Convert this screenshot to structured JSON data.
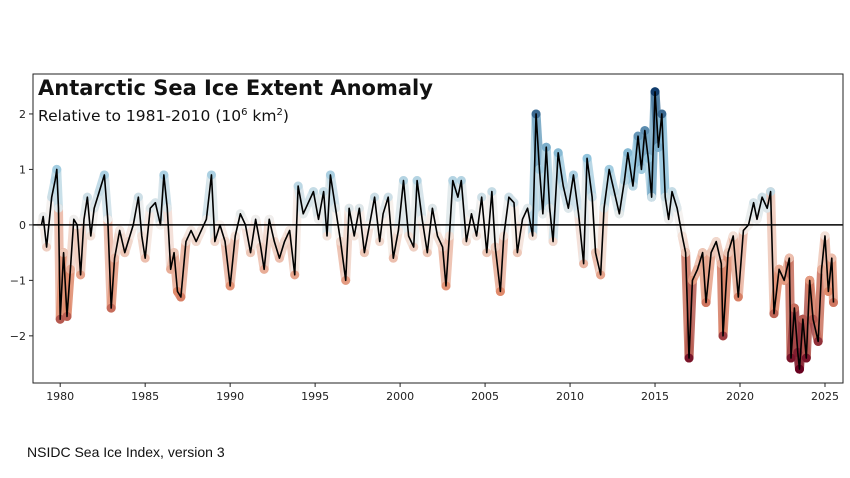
{
  "chart_data": {
    "type": "line",
    "title": "Antarctic Sea Ice Extent Anomaly",
    "subtitle_main": "Relative to 1981-2010 (10",
    "subtitle_exp1": "6",
    "subtitle_unit": " km",
    "subtitle_exp2": "2",
    "subtitle_close": ")",
    "xlim": [
      1978.4,
      2026.06
    ],
    "ylim": [
      -2.85,
      2.72
    ],
    "xticks": [
      1980,
      1985,
      1990,
      1995,
      2000,
      2005,
      2010,
      2015,
      2020,
      2025
    ],
    "yticks": [
      -2,
      -1,
      0,
      1,
      2
    ],
    "ytick_labels": [
      "−2",
      "−1",
      "0",
      "1",
      "2"
    ],
    "reference_line": 0,
    "line_color": "#000000",
    "halo_colormap": "RdBu (red negative, blue positive)",
    "colors": {
      "neg_max": "#67001f",
      "neg_mid": "#e08a6b",
      "neutral": "#f7f2ee",
      "pos_mid": "#92c5de",
      "pos_max": "#053061"
    },
    "x": [
      1978.9,
      1979.0,
      1979.2,
      1979.5,
      1979.7,
      1979.8,
      1979.9,
      1980.0,
      1980.2,
      1980.4,
      1980.6,
      1980.8,
      1981.0,
      1981.2,
      1981.4,
      1981.6,
      1981.8,
      1982.0,
      1982.3,
      1982.6,
      1982.8,
      1983.0,
      1983.2,
      1983.5,
      1983.8,
      1984.0,
      1984.3,
      1984.6,
      1984.8,
      1985.0,
      1985.3,
      1985.6,
      1985.9,
      1986.1,
      1986.3,
      1986.5,
      1986.7,
      1986.9,
      1987.1,
      1987.4,
      1987.7,
      1988.0,
      1988.3,
      1988.6,
      1988.9,
      1989.1,
      1989.4,
      1989.7,
      1990.0,
      1990.3,
      1990.6,
      1990.9,
      1991.2,
      1991.5,
      1991.8,
      1992.0,
      1992.3,
      1992.6,
      1992.9,
      1993.2,
      1993.5,
      1993.8,
      1994.0,
      1994.3,
      1994.6,
      1994.9,
      1995.2,
      1995.5,
      1995.7,
      1995.9,
      1996.2,
      1996.5,
      1996.8,
      1997.0,
      1997.3,
      1997.6,
      1997.9,
      1998.2,
      1998.5,
      1998.8,
      1999.0,
      1999.3,
      1999.6,
      1999.9,
      2000.2,
      2000.5,
      2000.8,
      2001.0,
      2001.3,
      2001.6,
      2001.9,
      2002.2,
      2002.5,
      2002.7,
      2002.9,
      2003.1,
      2003.4,
      2003.6,
      2003.9,
      2004.2,
      2004.5,
      2004.8,
      2005.1,
      2005.4,
      2005.6,
      2005.9,
      2006.1,
      2006.4,
      2006.7,
      2006.9,
      2007.2,
      2007.5,
      2007.8,
      2008.0,
      2008.2,
      2008.4,
      2008.6,
      2008.8,
      2009.0,
      2009.3,
      2009.6,
      2009.9,
      2010.2,
      2010.5,
      2010.8,
      2011.0,
      2011.3,
      2011.5,
      2011.8,
      2012.0,
      2012.3,
      2012.6,
      2012.9,
      2013.2,
      2013.4,
      2013.7,
      2014.0,
      2014.2,
      2014.4,
      2014.6,
      2014.8,
      2015.0,
      2015.2,
      2015.4,
      2015.6,
      2015.8,
      2016.0,
      2016.3,
      2016.6,
      2016.8,
      2017.0,
      2017.2,
      2017.5,
      2017.8,
      2018.0,
      2018.3,
      2018.6,
      2018.9,
      2019.0,
      2019.3,
      2019.6,
      2019.9,
      2020.2,
      2020.5,
      2020.8,
      2021.0,
      2021.3,
      2021.6,
      2021.8,
      2022.0,
      2022.3,
      2022.6,
      2022.9,
      2023.0,
      2023.2,
      2023.4,
      2023.5,
      2023.7,
      2023.9,
      2024.1,
      2024.3,
      2024.6,
      2024.8,
      2025.0,
      2025.2,
      2025.4,
      2025.5
    ],
    "y": [
      0,
      0.15,
      -0.4,
      0.5,
      0.8,
      1.0,
      0.3,
      -1.7,
      -0.5,
      -1.65,
      -0.8,
      0.1,
      0.0,
      -0.9,
      0.1,
      0.5,
      -0.2,
      0.3,
      0.6,
      0.9,
      0.1,
      -1.5,
      -0.6,
      -0.1,
      -0.5,
      -0.3,
      0.0,
      0.5,
      -0.2,
      -0.6,
      0.3,
      0.4,
      0.0,
      0.9,
      0.3,
      -0.8,
      -0.5,
      -1.2,
      -1.3,
      -0.3,
      -0.1,
      -0.3,
      -0.1,
      0.1,
      0.9,
      -0.3,
      0.0,
      -0.3,
      -1.1,
      -0.2,
      0.2,
      0.0,
      -0.5,
      0.1,
      -0.4,
      -0.8,
      0.1,
      -0.3,
      -0.6,
      -0.3,
      -0.1,
      -0.9,
      0.7,
      0.2,
      0.4,
      0.6,
      0.1,
      0.6,
      -0.2,
      0.9,
      0.3,
      -0.3,
      -1.0,
      0.3,
      -0.2,
      0.3,
      -0.5,
      0.0,
      0.5,
      -0.3,
      0.2,
      0.5,
      -0.6,
      -0.1,
      0.8,
      -0.2,
      -0.4,
      0.8,
      0.1,
      -0.5,
      0.3,
      -0.2,
      -0.4,
      -1.1,
      -0.2,
      0.8,
      0.5,
      0.8,
      -0.3,
      0.2,
      -0.2,
      0.5,
      -0.5,
      0.6,
      -0.4,
      -1.2,
      -0.2,
      0.5,
      0.4,
      -0.5,
      0.1,
      0.3,
      -0.2,
      2.0,
      1.0,
      0.2,
      1.4,
      0.3,
      -0.3,
      1.3,
      0.7,
      0.3,
      0.9,
      0.2,
      -0.7,
      1.2,
      0.5,
      -0.5,
      -0.9,
      0.3,
      1.0,
      0.6,
      0.2,
      0.8,
      1.3,
      0.7,
      1.6,
      1.0,
      1.7,
      1.2,
      0.5,
      2.4,
      1.4,
      2.0,
      0.5,
      0.1,
      0.6,
      0.3,
      -0.2,
      -0.5,
      -2.4,
      -1.0,
      -0.8,
      -0.5,
      -1.4,
      -0.5,
      -0.3,
      -0.7,
      -2.0,
      -0.5,
      -0.2,
      -1.3,
      -0.1,
      0.0,
      0.4,
      0.1,
      0.5,
      0.3,
      0.6,
      -1.6,
      -0.8,
      -1.0,
      -0.6,
      -2.4,
      -1.5,
      -2.3,
      -2.6,
      -1.7,
      -2.4,
      -1.0,
      -1.7,
      -2.1,
      -0.8,
      -0.2,
      -1.2,
      -0.6,
      -1.4
    ],
    "grid": false,
    "legend": "none"
  },
  "source": "NSIDC Sea Ice Index, version 3"
}
